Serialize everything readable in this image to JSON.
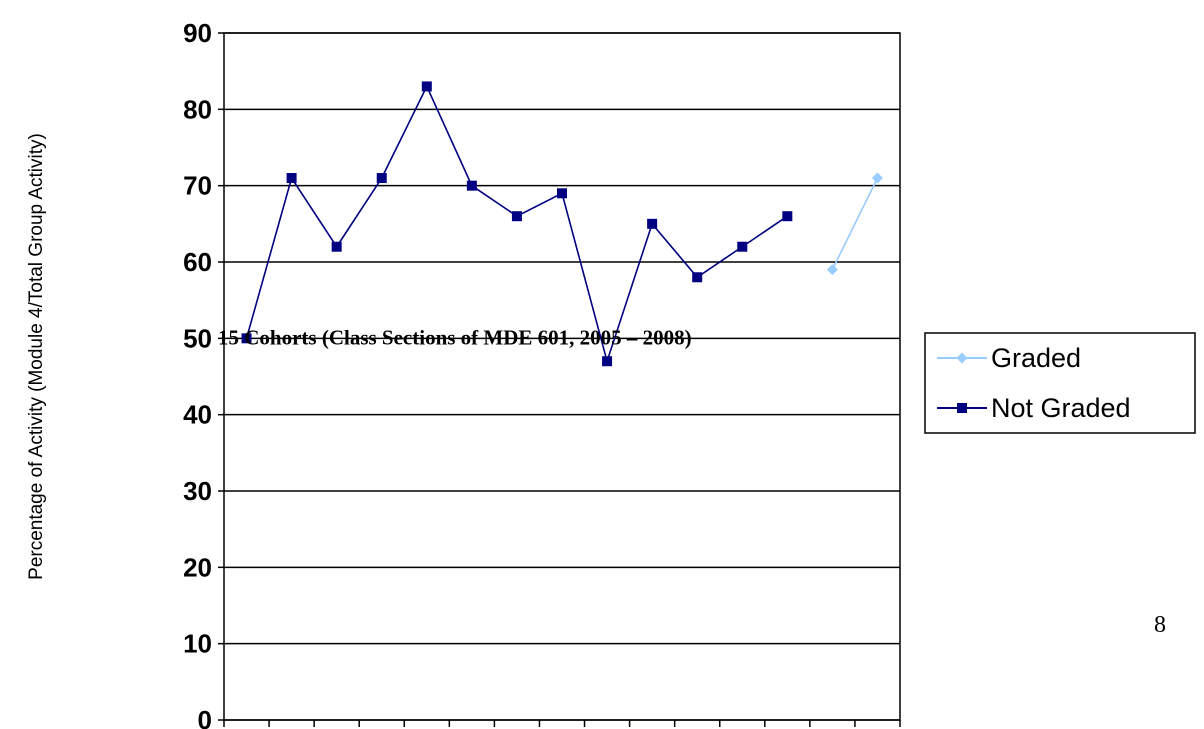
{
  "chart_data": {
    "type": "line",
    "title": "",
    "ylabel": "Percentage of Activity (Module 4/Total Group Activity)",
    "ylim": [
      0,
      90
    ],
    "yticks": [
      "0",
      "10",
      "20",
      "30",
      "40",
      "50",
      "60",
      "70",
      "80",
      "90"
    ],
    "grid": "horizontal",
    "legend_position": "right",
    "annotation": "15 Cohorts (Class Sections of MDE 601, 2005 – 2008)",
    "x_positions": 15,
    "series": [
      {
        "name": "Not Graded",
        "color": "#000080",
        "marker": "square",
        "x": [
          1,
          2,
          3,
          4,
          5,
          6,
          7,
          8,
          9,
          10,
          11,
          12,
          13
        ],
        "values": [
          50,
          71,
          62,
          71,
          83,
          70,
          66,
          69,
          47,
          65,
          58,
          62,
          66
        ]
      },
      {
        "name": "Graded",
        "color": "#99CCFF",
        "marker": "diamond",
        "x": [
          14,
          15
        ],
        "values": [
          59,
          71
        ]
      }
    ]
  },
  "legend": {
    "items": [
      {
        "label": "Graded",
        "color": "#99CCFF",
        "marker": "diamond"
      },
      {
        "label": "Not Graded",
        "color": "#000080",
        "marker": "square"
      }
    ]
  },
  "page_number": "8"
}
